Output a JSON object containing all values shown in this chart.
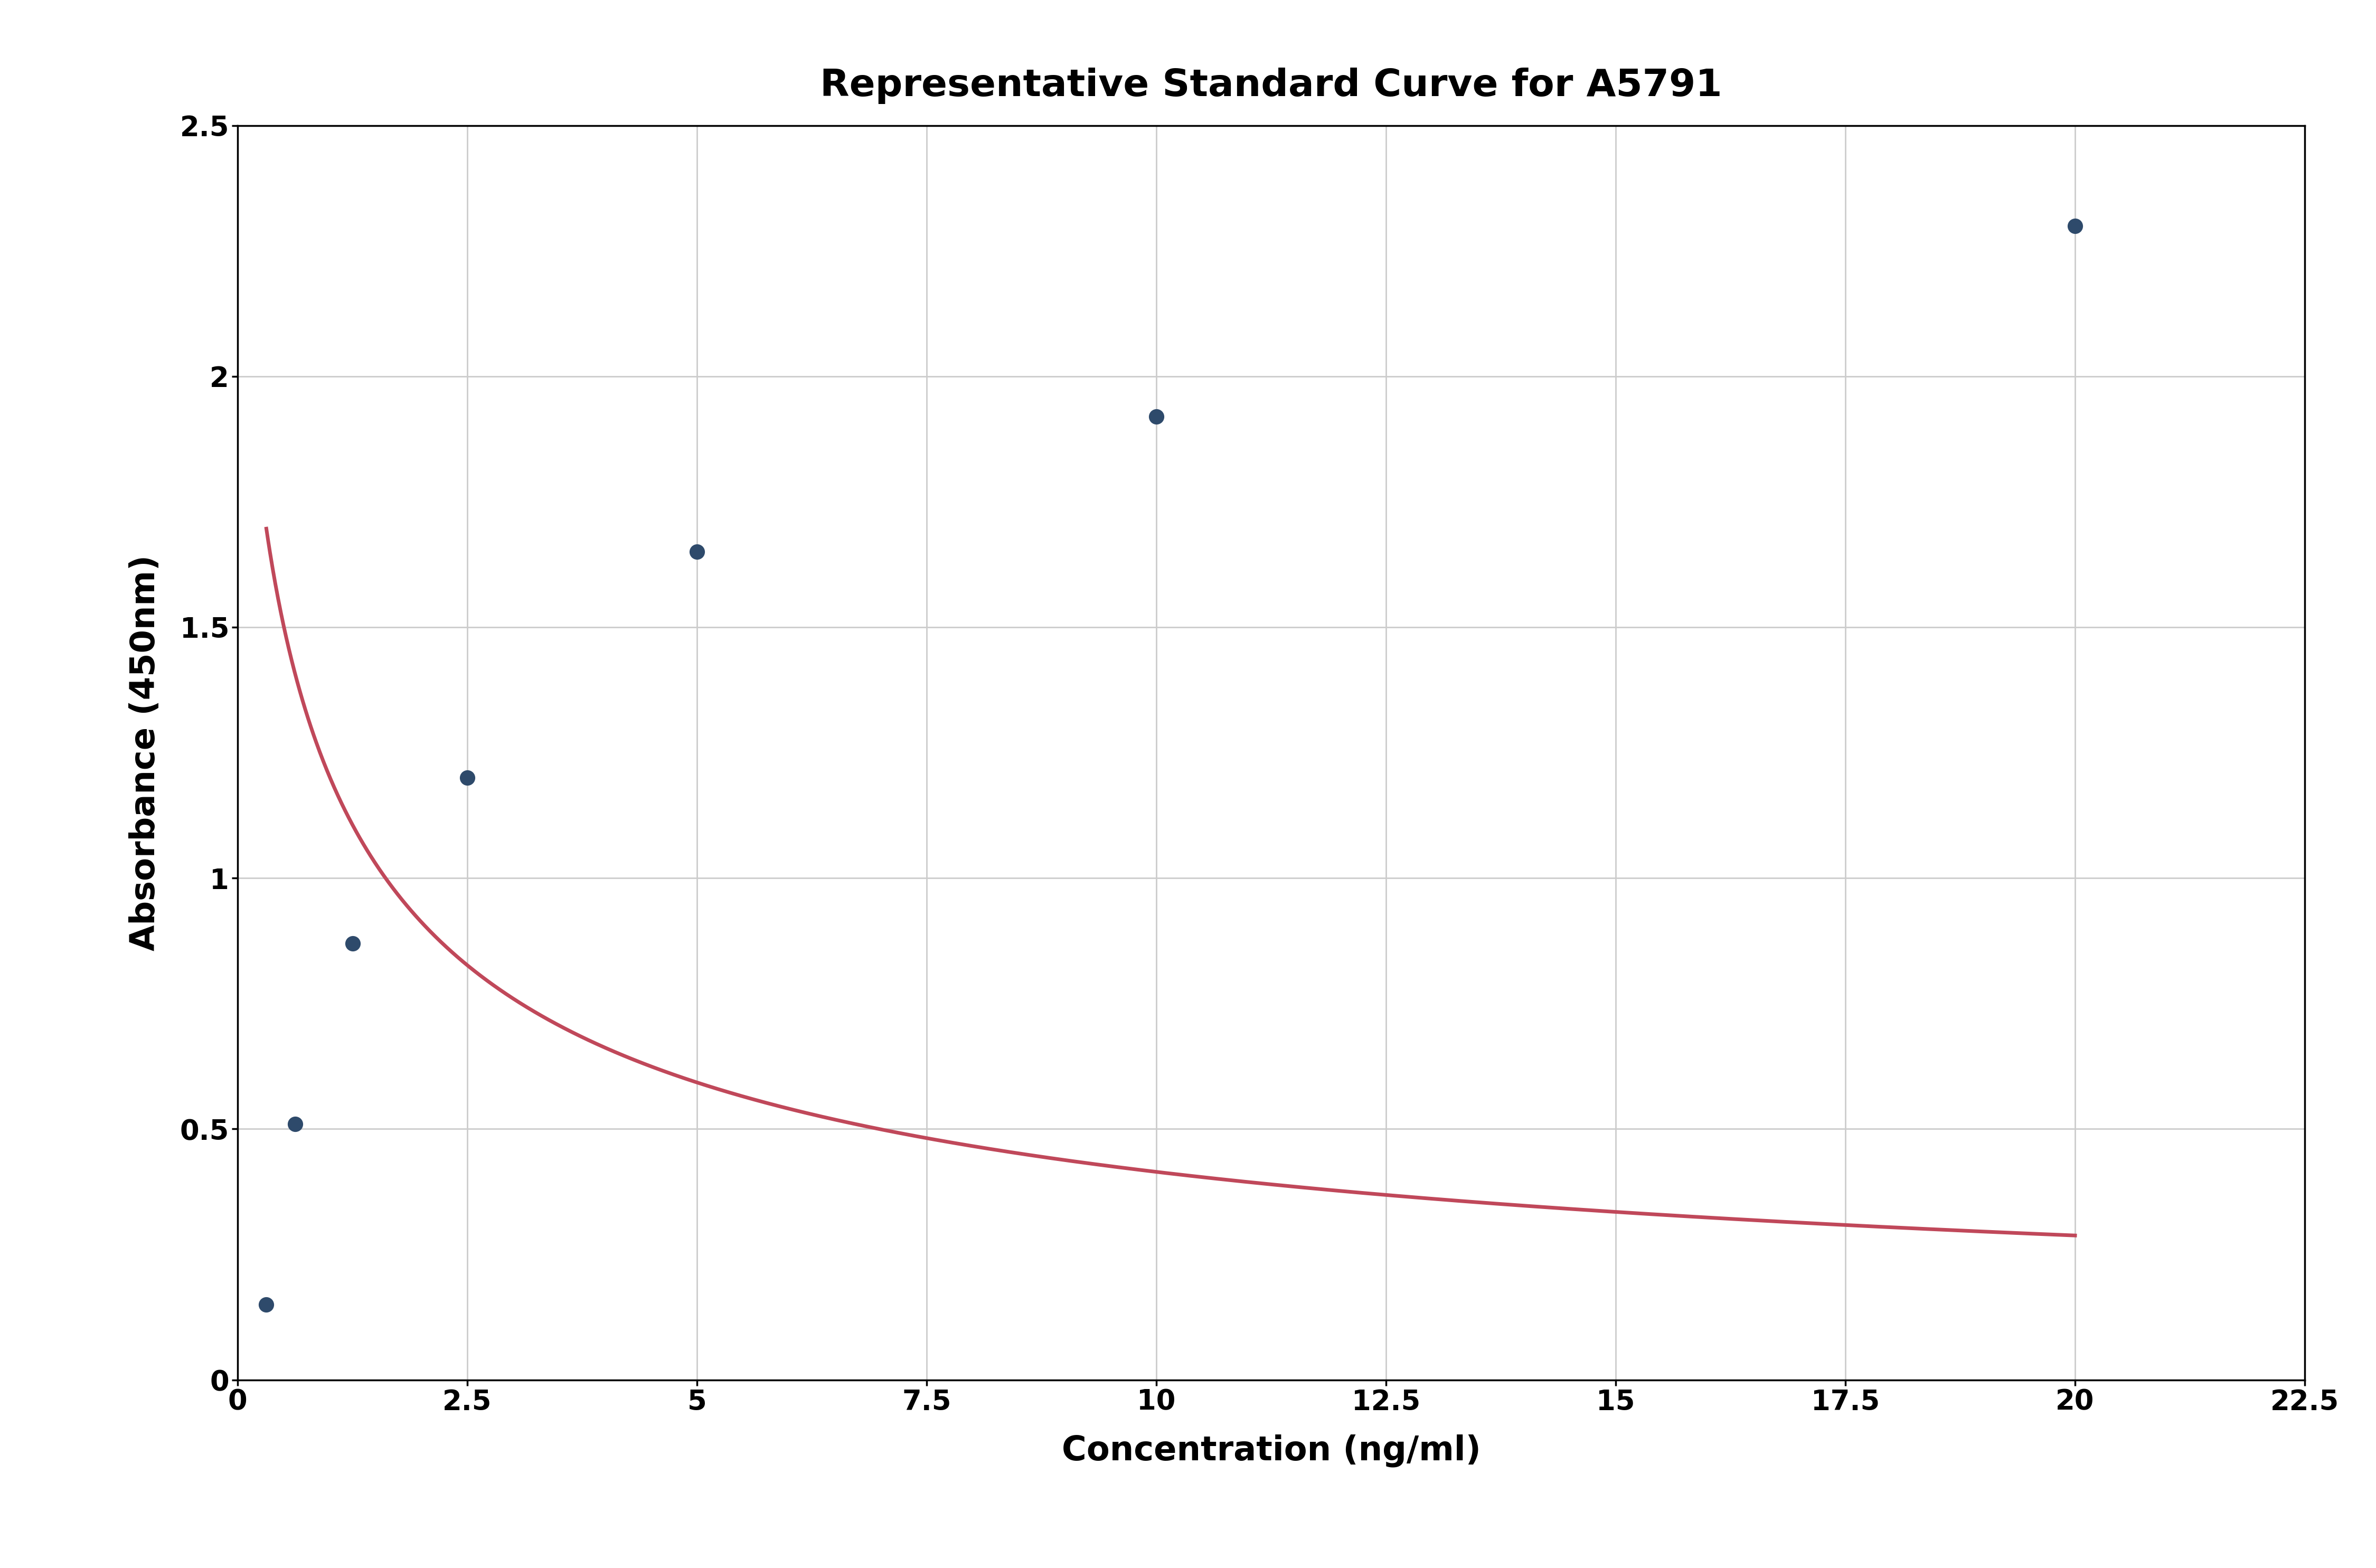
{
  "title": "Representative Standard Curve for A5791",
  "xlabel": "Concentration (ng/ml)",
  "ylabel": "Absorbance (450nm)",
  "data_x": [
    0.313,
    0.625,
    1.25,
    2.5,
    5.0,
    10.0,
    20.0
  ],
  "data_y": [
    0.15,
    0.51,
    0.87,
    1.2,
    1.65,
    1.92,
    2.3
  ],
  "xlim": [
    0,
    22.5
  ],
  "ylim": [
    0,
    2.5
  ],
  "xticks": [
    0.0,
    2.5,
    5.0,
    7.5,
    10.0,
    12.5,
    15.0,
    17.5,
    20.0,
    22.5
  ],
  "yticks": [
    0.0,
    0.5,
    1.0,
    1.5,
    2.0,
    2.5
  ],
  "dot_color": "#2e4a6b",
  "line_color": "#c0485a",
  "background_color": "#ffffff",
  "grid_color": "#cccccc",
  "title_fontsize": 52,
  "label_fontsize": 46,
  "tick_fontsize": 38,
  "dot_size": 400,
  "line_width": 5.0
}
